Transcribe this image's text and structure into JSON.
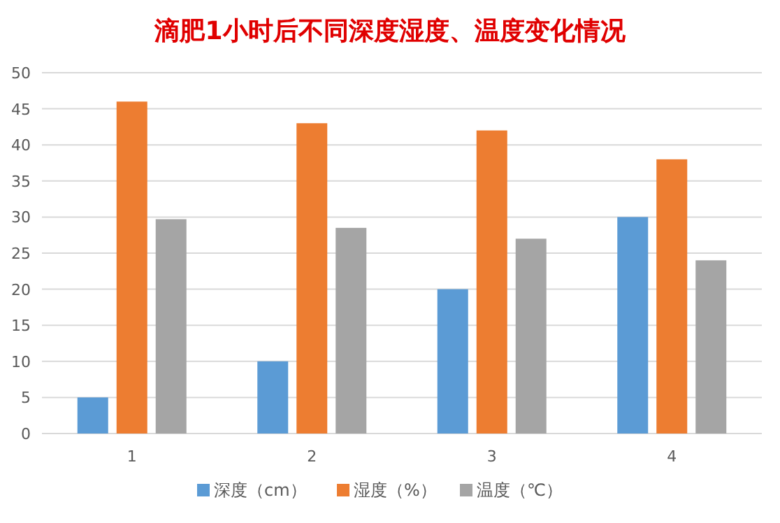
{
  "chart_data": {
    "type": "bar",
    "title": "滴肥1小时后不同深度湿度、温度变化情况",
    "categories": [
      "1",
      "2",
      "3",
      "4"
    ],
    "series": [
      {
        "name": "深度（cm）",
        "color": "#5b9bd5",
        "values": [
          5,
          10,
          20,
          30
        ]
      },
      {
        "name": "湿度（%）",
        "color": "#ed7d31",
        "values": [
          46,
          43,
          42,
          38
        ]
      },
      {
        "name": "温度（℃）",
        "color": "#a5a5a5",
        "values": [
          29.7,
          28.5,
          27,
          24
        ]
      }
    ],
    "ylim": [
      0,
      50
    ],
    "yticks": [
      0,
      5,
      10,
      15,
      20,
      25,
      30,
      35,
      40,
      45,
      50
    ],
    "grid": "y",
    "legend": "bottom"
  }
}
